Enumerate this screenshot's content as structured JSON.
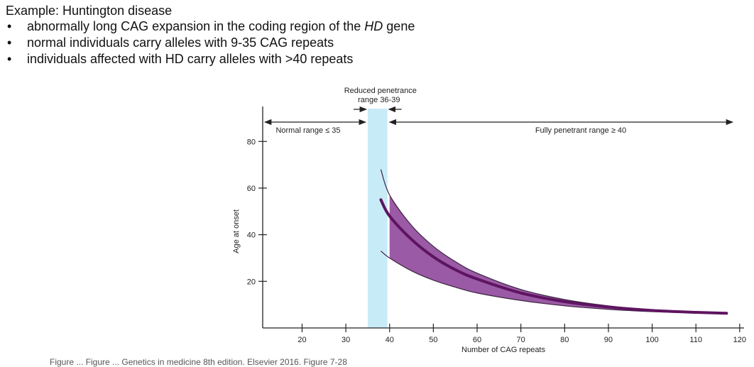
{
  "intro": {
    "title": "Example: Huntington disease",
    "bullets": [
      {
        "before": "abnormally long CAG expansion in the coding region of the ",
        "italic": "HD",
        "after": " gene"
      },
      {
        "before": "normal individuals carry alleles with 9-35 CAG repeats",
        "italic": "",
        "after": ""
      },
      {
        "before": "individuals affected with HD carry alleles with >40 repeats",
        "italic": "",
        "after": ""
      }
    ]
  },
  "caption": "Figure ... Figure ... Genetics in medicine 8th edition. Elsevier 2016. Figure 7-28",
  "colors": {
    "band": "#c8ebf8",
    "fill": "#9b5aa5",
    "mean_curve": "#5e1460",
    "bound_curve": "#3a2440",
    "axis": "#222222"
  },
  "chart_data": {
    "type": "area",
    "xlabel": "Number of CAG repeats",
    "ylabel": "Age at onset",
    "xlim": [
      11,
      121
    ],
    "ylim": [
      0,
      95
    ],
    "xticks": [
      20,
      30,
      40,
      50,
      60,
      70,
      80,
      90,
      100,
      110,
      120
    ],
    "yticks": [
      20,
      40,
      60,
      80
    ],
    "reduced_penetrance_band": [
      35,
      39.5
    ],
    "ranges": {
      "reduced_label_line1": "Reduced penetrance",
      "reduced_label_line2": "range 36-39",
      "normal_label": "Normal range ≤ 35",
      "full_label": "Fully penetrant range ≥ 40"
    },
    "series": [
      {
        "role": "upper",
        "x": [
          38,
          40,
          45,
          50,
          55,
          60,
          70,
          80,
          90,
          100,
          110,
          117
        ],
        "y": [
          68,
          57,
          44,
          35,
          28.5,
          23.5,
          16.5,
          12.2,
          9.5,
          7.8,
          6.8,
          6.4
        ]
      },
      {
        "role": "mean",
        "x": [
          38,
          40,
          45,
          50,
          55,
          60,
          70,
          80,
          90,
          100,
          110,
          117
        ],
        "y": [
          55,
          48,
          38,
          30.5,
          25,
          21,
          15,
          11.3,
          9,
          7.5,
          6.7,
          6.3
        ]
      },
      {
        "role": "lower",
        "x": [
          38,
          40,
          45,
          50,
          55,
          60,
          70,
          80,
          90,
          100,
          110,
          117
        ],
        "y": [
          33,
          30,
          24.5,
          20.5,
          17.5,
          15,
          11.8,
          9.5,
          8,
          7,
          6.5,
          6.2
        ]
      }
    ],
    "shaded_from_x": 40
  }
}
